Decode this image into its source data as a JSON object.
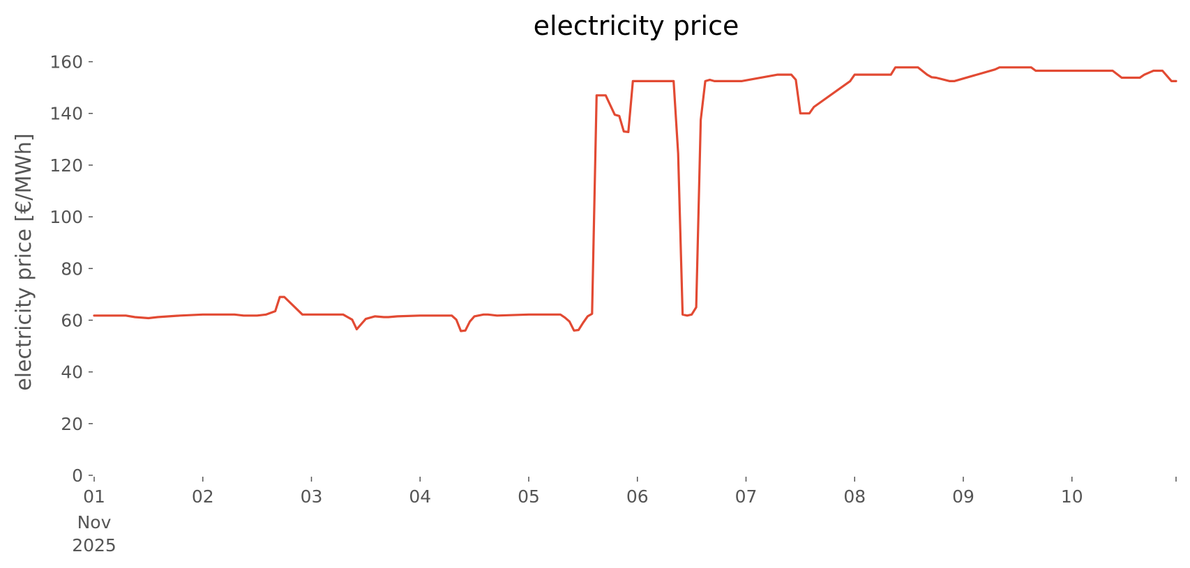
{
  "chart_data": {
    "type": "line",
    "title": "electricity price",
    "ylabel": "electricity price [€/MWh]",
    "xlabel": "",
    "grid": false,
    "legend": "none",
    "color": "#e24a33",
    "xlim": [
      "2025-11-01T00:00",
      "2025-11-10T23:00"
    ],
    "ylim": [
      0,
      165
    ],
    "y_ticks": [
      0,
      20,
      40,
      60,
      80,
      100,
      120,
      140,
      160
    ],
    "x_ticks": [
      {
        "date": "2025-11-01T00:00",
        "label": "01",
        "sublabels": [
          "Nov",
          "2025"
        ]
      },
      {
        "date": "2025-11-02T00:00",
        "label": "02"
      },
      {
        "date": "2025-11-03T00:00",
        "label": "03"
      },
      {
        "date": "2025-11-04T00:00",
        "label": "04"
      },
      {
        "date": "2025-11-05T00:00",
        "label": "05"
      },
      {
        "date": "2025-11-06T00:00",
        "label": "06"
      },
      {
        "date": "2025-11-07T00:00",
        "label": "07"
      },
      {
        "date": "2025-11-08T00:00",
        "label": "08"
      },
      {
        "date": "2025-11-09T00:00",
        "label": "09"
      },
      {
        "date": "2025-11-10T00:00",
        "label": "10"
      },
      {
        "date": "2025-11-10T23:00",
        "label": ""
      }
    ],
    "series": [
      {
        "x": [
          "2025-11-01T00:00",
          "2025-11-01T07:00",
          "2025-11-01T09:00",
          "2025-11-01T12:00",
          "2025-11-01T14:00",
          "2025-11-01T19:00",
          "2025-11-02T00:00",
          "2025-11-02T07:00",
          "2025-11-02T09:00",
          "2025-11-02T12:00",
          "2025-11-02T14:00",
          "2025-11-02T16:00",
          "2025-11-02T17:00",
          "2025-11-02T18:00",
          "2025-11-02T22:00",
          "2025-11-02T23:00",
          "2025-11-03T07:00",
          "2025-11-03T08:00",
          "2025-11-03T09:00",
          "2025-11-03T10:00",
          "2025-11-03T11:00",
          "2025-11-03T12:00",
          "2025-11-03T14:00",
          "2025-11-03T16:00",
          "2025-11-03T17:00",
          "2025-11-03T19:00",
          "2025-11-04T00:00",
          "2025-11-04T07:00",
          "2025-11-04T08:00",
          "2025-11-04T09:00",
          "2025-11-04T10:00",
          "2025-11-04T11:00",
          "2025-11-04T12:00",
          "2025-11-04T14:00",
          "2025-11-04T15:00",
          "2025-11-04T17:00",
          "2025-11-05T00:00",
          "2025-11-05T07:00",
          "2025-11-05T08:00",
          "2025-11-05T09:00",
          "2025-11-05T10:00",
          "2025-11-05T11:00",
          "2025-11-05T12:00",
          "2025-11-05T13:00",
          "2025-11-05T14:00",
          "2025-11-05T15:00",
          "2025-11-05T16:00",
          "2025-11-05T17:00",
          "2025-11-05T19:00",
          "2025-11-05T20:00",
          "2025-11-05T21:00",
          "2025-11-05T22:00",
          "2025-11-05T23:00",
          "2025-11-06T00:00",
          "2025-11-06T08:00",
          "2025-11-06T09:00",
          "2025-11-06T10:00",
          "2025-11-06T11:00",
          "2025-11-06T12:00",
          "2025-11-06T13:00",
          "2025-11-06T14:00",
          "2025-11-06T15:00",
          "2025-11-06T16:00",
          "2025-11-06T17:00",
          "2025-11-06T23:00",
          "2025-11-07T07:00",
          "2025-11-07T08:00",
          "2025-11-07T09:00",
          "2025-11-07T10:00",
          "2025-11-07T11:00",
          "2025-11-07T12:00",
          "2025-11-07T14:00",
          "2025-11-07T15:00",
          "2025-11-07T23:00",
          "2025-11-08T00:00",
          "2025-11-08T07:00",
          "2025-11-08T08:00",
          "2025-11-08T09:00",
          "2025-11-08T10:00",
          "2025-11-08T12:00",
          "2025-11-08T14:00",
          "2025-11-08T16:00",
          "2025-11-08T17:00",
          "2025-11-08T18:00",
          "2025-11-08T21:00",
          "2025-11-08T22:00",
          "2025-11-09T07:00",
          "2025-11-09T08:00",
          "2025-11-09T14:00",
          "2025-11-09T15:00",
          "2025-11-09T16:00",
          "2025-11-09T17:00",
          "2025-11-09T21:00",
          "2025-11-09T22:00",
          "2025-11-09T23:00",
          "2025-11-10T09:00",
          "2025-11-10T11:00",
          "2025-11-10T12:00",
          "2025-11-10T13:00",
          "2025-11-10T14:00",
          "2025-11-10T15:00",
          "2025-11-10T16:00",
          "2025-11-10T18:00",
          "2025-11-10T20:00",
          "2025-11-10T22:00",
          "2025-11-10T23:00"
        ],
        "y": [
          61.8,
          61.8,
          61.2,
          60.8,
          61.2,
          61.8,
          62.2,
          62.2,
          61.8,
          61.8,
          62.2,
          63.5,
          69.0,
          69.0,
          62.2,
          62.2,
          62.2,
          61.2,
          60.2,
          56.5,
          58.5,
          60.5,
          61.5,
          61.2,
          61.2,
          61.5,
          61.8,
          61.8,
          60.2,
          55.8,
          56.0,
          59.5,
          61.5,
          62.2,
          62.2,
          61.8,
          62.2,
          62.2,
          61.0,
          59.5,
          56.0,
          56.2,
          59.0,
          61.5,
          62.5,
          147.0,
          147.0,
          147.0,
          139.5,
          139.0,
          133.0,
          132.8,
          152.5,
          152.5,
          152.5,
          124.5,
          62.2,
          61.8,
          62.2,
          65.0,
          137.5,
          152.5,
          153.0,
          152.5,
          152.5,
          155.0,
          155.0,
          155.0,
          155.0,
          153.0,
          140.0,
          140.0,
          142.5,
          152.5,
          155.0,
          155.0,
          155.0,
          157.8,
          157.8,
          157.8,
          157.8,
          155.0,
          154.0,
          153.8,
          152.5,
          152.5,
          157.0,
          157.8,
          157.8,
          157.8,
          156.5,
          156.5,
          156.5,
          156.5,
          156.5,
          156.5,
          153.8,
          153.8,
          153.8,
          153.8,
          153.8,
          155.0,
          156.5,
          156.5,
          152.5,
          152.5
        ]
      }
    ]
  }
}
